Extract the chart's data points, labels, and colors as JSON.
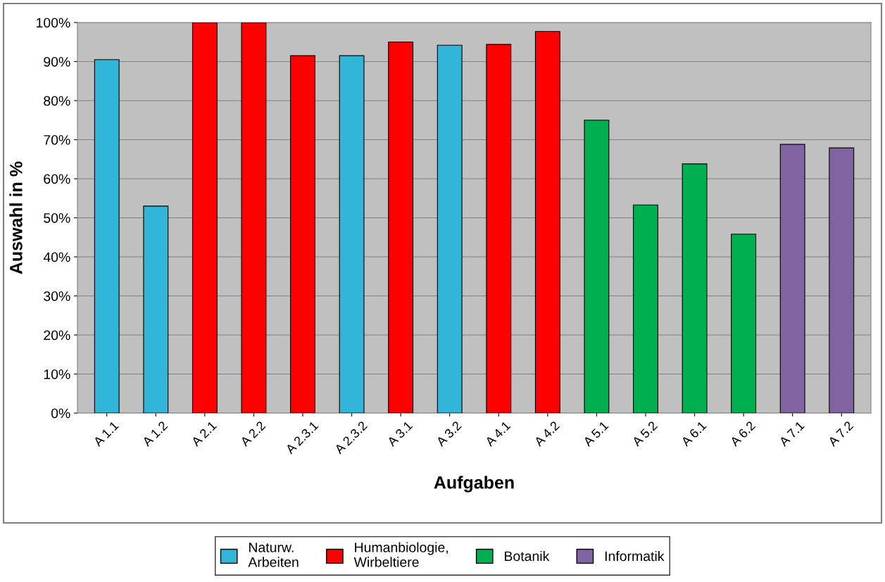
{
  "chart_data": {
    "type": "bar",
    "xlabel": "Aufgaben",
    "ylabel": "Auswahl in %",
    "categories": [
      "A 1.1",
      "A 1.2",
      "A 2.1",
      "A 2.2",
      "A 2.3.1",
      "A 2.3.2",
      "A 3.1",
      "A 3.2",
      "A 4.1",
      "A 4.2",
      "A 5.1",
      "A 5.2",
      "A 6.1",
      "A 6.2",
      "A 7.1",
      "A 7.2"
    ],
    "series": [
      {
        "name": "Naturw.\nArbeiten",
        "color": "#31b6d9",
        "values": [
          90.5,
          53,
          null,
          null,
          null,
          91.5,
          null,
          94.2,
          null,
          null,
          null,
          null,
          null,
          null,
          null,
          null
        ]
      },
      {
        "name": "Humanbiologie,\nWirbeltiere",
        "color": "#ff0000",
        "values": [
          null,
          null,
          100,
          100,
          91.5,
          null,
          95,
          null,
          94.4,
          97.7,
          null,
          null,
          null,
          null,
          null,
          null
        ]
      },
      {
        "name": "Botanik",
        "color": "#00b050",
        "values": [
          null,
          null,
          null,
          null,
          null,
          null,
          null,
          null,
          null,
          null,
          75,
          53.3,
          63.8,
          45.8,
          null,
          null
        ]
      },
      {
        "name": "Informatik",
        "color": "#8064a2",
        "values": [
          null,
          null,
          null,
          null,
          null,
          null,
          null,
          null,
          null,
          null,
          null,
          null,
          null,
          null,
          68.8,
          67.9
        ]
      }
    ],
    "ylim": [
      0,
      100
    ],
    "yticks": [
      {
        "value": 0,
        "label": "0%"
      },
      {
        "value": 10,
        "label": "10%"
      },
      {
        "value": 20,
        "label": "20%"
      },
      {
        "value": 30,
        "label": "30%"
      },
      {
        "value": 40,
        "label": "40%"
      },
      {
        "value": 50,
        "label": "50%"
      },
      {
        "value": 60,
        "label": "60%"
      },
      {
        "value": 70,
        "label": "70%"
      },
      {
        "value": 80,
        "label": "80%"
      },
      {
        "value": 90,
        "label": "90%"
      },
      {
        "value": 100,
        "label": "100%"
      }
    ],
    "grid": "y",
    "legend": "bottom"
  }
}
